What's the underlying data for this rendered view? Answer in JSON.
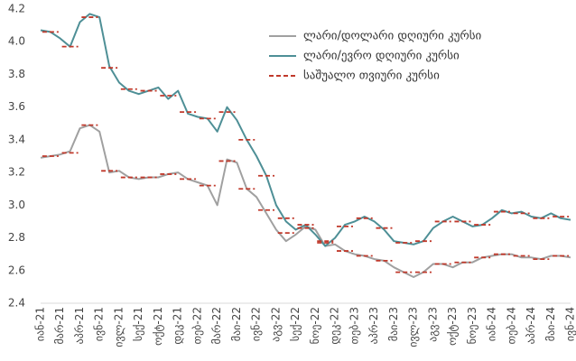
{
  "chart_data": {
    "type": "line",
    "categories": [
      "იან-21",
      null,
      "მარ-21",
      null,
      "აპრ-21",
      null,
      "ივნ-21",
      null,
      "ივლ-21",
      null,
      "სექ-21",
      null,
      "ოქტ-21",
      null,
      "დეკ-21",
      null,
      "თებ-22",
      null,
      "მარ-22",
      null,
      "მაი-22",
      null,
      "ივნ-22",
      null,
      "აგვ-22",
      null,
      "სექ-22",
      null,
      "ნოე-22",
      null,
      "დეკ-22",
      null,
      "თებ-23",
      null,
      "აპრ-23",
      null,
      "მაი-23",
      null,
      "ივლ-23",
      null,
      "აგვ-23",
      null,
      "ოქტ-23",
      null,
      "ნოე-23",
      null,
      "იან-24",
      null,
      "თებ-24",
      null,
      "აპრ-24",
      null,
      "მაი-24",
      null,
      "ივნ-24"
    ],
    "series": [
      {
        "name": "ლარი/დოლარი დღიური კურსი",
        "color": "#a0a0a0",
        "style": "solid",
        "values": [
          3.29,
          3.3,
          3.31,
          3.33,
          3.47,
          3.49,
          3.45,
          3.2,
          3.21,
          3.17,
          3.16,
          3.17,
          3.17,
          3.19,
          3.2,
          3.16,
          3.14,
          3.12,
          3.0,
          3.28,
          3.26,
          3.1,
          3.05,
          2.95,
          2.85,
          2.78,
          2.82,
          2.87,
          2.85,
          2.75,
          2.76,
          2.72,
          2.7,
          2.69,
          2.67,
          2.66,
          2.62,
          2.59,
          2.56,
          2.59,
          2.64,
          2.64,
          2.62,
          2.65,
          2.65,
          2.68,
          2.69,
          2.7,
          2.7,
          2.68,
          2.68,
          2.67,
          2.69,
          2.69,
          2.68
        ]
      },
      {
        "name": "ლარი/ევრო დღიური კურსი",
        "color": "#4e8f96",
        "style": "solid",
        "values": [
          4.07,
          4.06,
          4.02,
          3.97,
          4.12,
          4.17,
          4.15,
          3.85,
          3.75,
          3.7,
          3.68,
          3.7,
          3.72,
          3.65,
          3.7,
          3.56,
          3.54,
          3.53,
          3.45,
          3.6,
          3.52,
          3.4,
          3.3,
          3.18,
          3.0,
          2.9,
          2.85,
          2.88,
          2.82,
          2.75,
          2.8,
          2.88,
          2.9,
          2.93,
          2.9,
          2.85,
          2.78,
          2.77,
          2.76,
          2.78,
          2.86,
          2.9,
          2.93,
          2.9,
          2.87,
          2.88,
          2.92,
          2.97,
          2.95,
          2.96,
          2.93,
          2.92,
          2.95,
          2.92,
          2.91
        ]
      },
      {
        "name": "საშუალო თვიური კურსი",
        "color": "#c0392b",
        "style": "dash",
        "values": [
          null,
          3.3,
          null,
          3.32,
          null,
          3.49,
          null,
          3.21,
          null,
          3.17,
          null,
          3.17,
          null,
          3.19,
          null,
          3.16,
          null,
          3.12,
          null,
          3.27,
          null,
          3.1,
          null,
          2.97,
          null,
          2.83,
          null,
          2.86,
          null,
          2.78,
          null,
          2.72,
          null,
          2.69,
          null,
          2.66,
          null,
          2.59,
          null,
          2.59,
          null,
          2.64,
          null,
          2.65,
          null,
          2.68,
          null,
          2.7,
          null,
          2.69,
          null,
          2.67,
          null,
          2.69,
          null
        ]
      },
      {
        "color": "#c0392b",
        "style": "dash",
        "values": [
          null,
          4.06,
          null,
          3.97,
          null,
          4.15,
          null,
          3.84,
          null,
          3.71,
          null,
          3.7,
          null,
          3.67,
          null,
          3.57,
          null,
          3.53,
          null,
          3.57,
          null,
          3.4,
          null,
          3.18,
          null,
          2.92,
          null,
          2.88,
          null,
          2.77,
          null,
          2.87,
          null,
          2.92,
          null,
          2.86,
          null,
          2.77,
          null,
          2.78,
          null,
          2.9,
          null,
          2.9,
          null,
          2.88,
          null,
          2.96,
          null,
          2.95,
          null,
          2.92,
          null,
          2.93,
          null
        ]
      }
    ],
    "ylim": [
      2.4,
      4.2
    ],
    "yticks": [
      2.4,
      2.6,
      2.8,
      {
        "value": 3,
        "label": "3.0"
      },
      3.2,
      3.4,
      3.6,
      3.8,
      {
        "value": 4,
        "label": "4.0"
      },
      4.2
    ],
    "grid": false,
    "legend": "upper right"
  }
}
